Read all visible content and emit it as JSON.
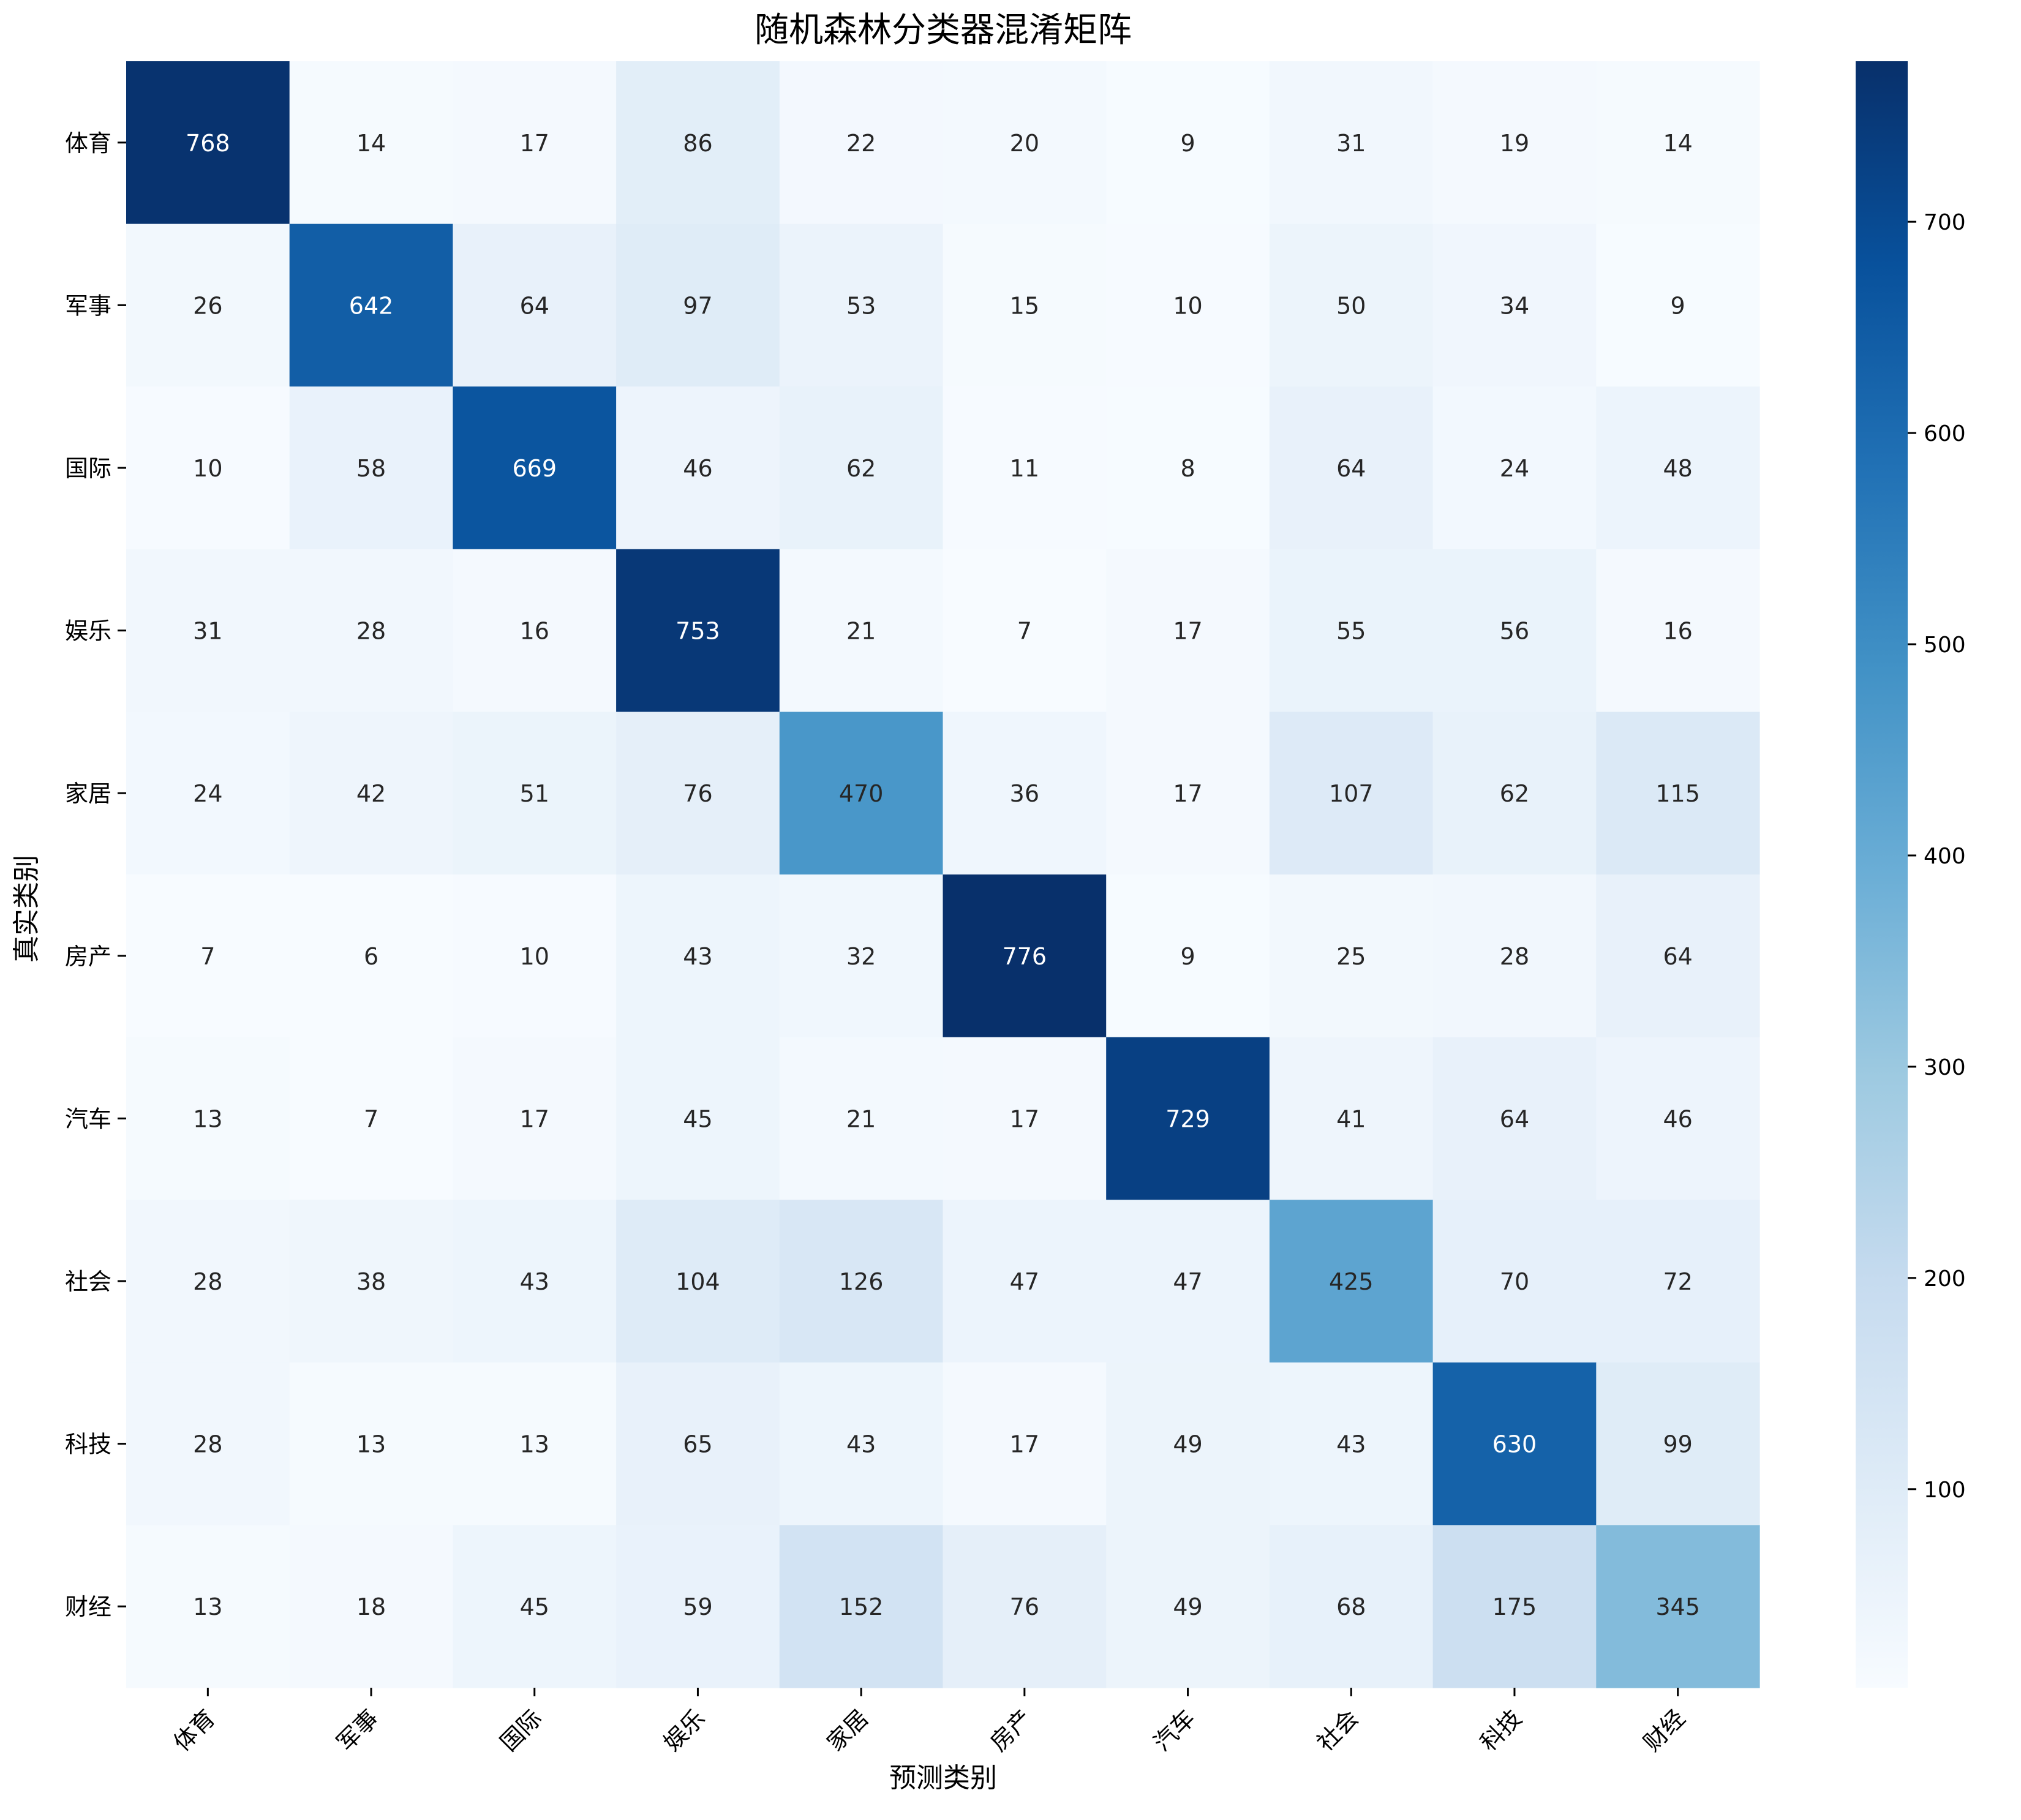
{
  "chart_data": {
    "type": "heatmap",
    "title": "随机森林分类器混淆矩阵",
    "xlabel": "预测类别",
    "ylabel": "真实类别",
    "x_categories": [
      "体育",
      "军事",
      "国际",
      "娱乐",
      "家居",
      "房产",
      "汽车",
      "社会",
      "科技",
      "财经"
    ],
    "y_categories": [
      "体育",
      "军事",
      "国际",
      "娱乐",
      "家居",
      "房产",
      "汽车",
      "社会",
      "科技",
      "财经"
    ],
    "values": [
      [
        768,
        14,
        17,
        86,
        22,
        20,
        9,
        31,
        19,
        14
      ],
      [
        26,
        642,
        64,
        97,
        53,
        15,
        10,
        50,
        34,
        9
      ],
      [
        10,
        58,
        669,
        46,
        62,
        11,
        8,
        64,
        24,
        48
      ],
      [
        31,
        28,
        16,
        753,
        21,
        7,
        17,
        55,
        56,
        16
      ],
      [
        24,
        42,
        51,
        76,
        470,
        36,
        17,
        107,
        62,
        115
      ],
      [
        7,
        6,
        10,
        43,
        32,
        776,
        9,
        25,
        28,
        64
      ],
      [
        13,
        7,
        17,
        45,
        21,
        17,
        729,
        41,
        64,
        46
      ],
      [
        28,
        38,
        43,
        104,
        126,
        47,
        47,
        425,
        70,
        72
      ],
      [
        28,
        13,
        13,
        65,
        43,
        17,
        49,
        43,
        630,
        99
      ],
      [
        13,
        18,
        45,
        59,
        152,
        76,
        49,
        68,
        175,
        345
      ]
    ],
    "colormap": "Blues",
    "color_range": [
      6,
      776
    ],
    "colorbar_ticks": [
      100,
      200,
      300,
      400,
      500,
      600,
      700
    ],
    "grid": false
  }
}
